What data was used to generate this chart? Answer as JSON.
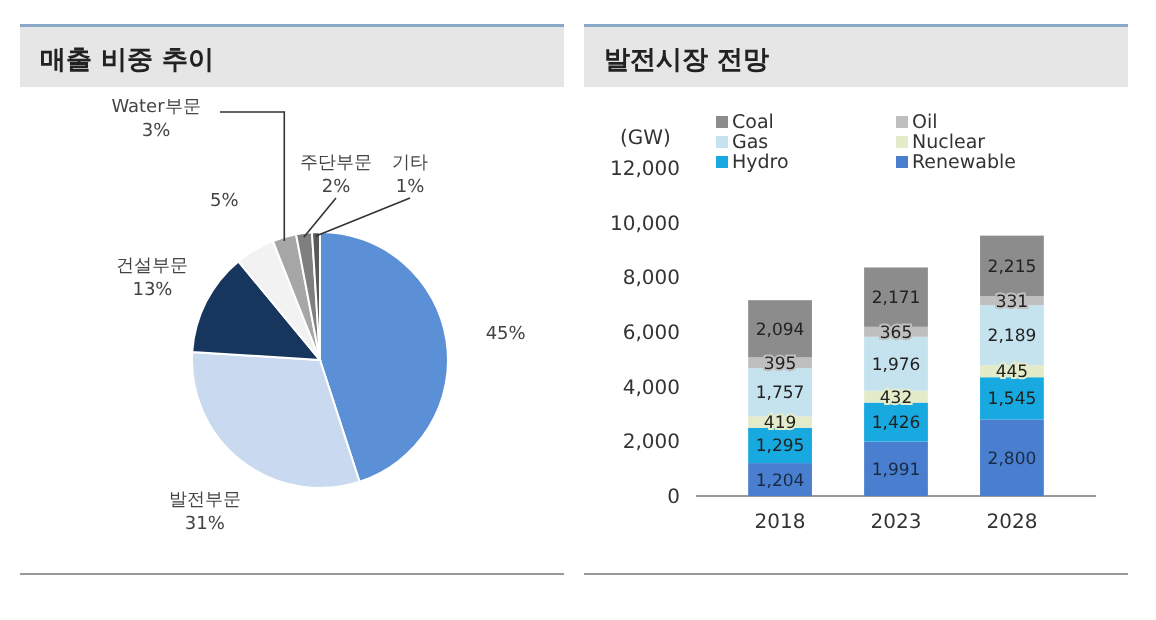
{
  "chart_data": [
    {
      "type": "pie",
      "title": "매출 비중 추이",
      "categories": [
        null,
        "발전부문",
        "건설부문",
        null,
        "Water부문",
        "주단부문",
        "기타"
      ],
      "values": [
        45,
        31,
        13,
        5,
        3,
        2,
        1
      ],
      "value_labels": [
        "45%",
        "31%",
        "13%",
        "5%",
        "3%",
        "2%",
        "1%"
      ],
      "colors": [
        "#5b8fd6",
        "#c9daf0",
        "#17365d",
        "#f2f2f2",
        "#a6a6a6",
        "#7f7f7f",
        "#595959"
      ]
    },
    {
      "type": "bar",
      "title": "발전시장 전망",
      "ylabel": "(GW)",
      "stacked": true,
      "legend": "top",
      "categories": [
        "2018",
        "2023",
        "2028"
      ],
      "ylim": [
        0,
        12000
      ],
      "yticks": [
        {
          "value": 0,
          "label": "0"
        },
        {
          "value": 2000,
          "label": "2,000"
        },
        {
          "value": 4000,
          "label": "4,000"
        },
        {
          "value": 6000,
          "label": "6,000"
        },
        {
          "value": 8000,
          "label": "8,000"
        },
        {
          "value": 10000,
          "label": "10,000"
        },
        {
          "value": 12000,
          "label": "12,000"
        }
      ],
      "series": [
        {
          "name": "Renewable",
          "color": "#4a7fcf",
          "values": [
            1204,
            1991,
            2800
          ],
          "value_labels": [
            "1,204",
            "1,991",
            "2,800"
          ]
        },
        {
          "name": "Hydro",
          "color": "#17a9e0",
          "values": [
            1295,
            1426,
            1545
          ],
          "value_labels": [
            "1,295",
            "1,426",
            "1,545"
          ]
        },
        {
          "name": "Nuclear",
          "color": "#e3ecc9",
          "values": [
            419,
            432,
            445
          ],
          "value_labels": [
            "419",
            "432",
            "445"
          ]
        },
        {
          "name": "Gas",
          "color": "#c5e3ef",
          "values": [
            1757,
            1976,
            2189
          ],
          "value_labels": [
            "1,757",
            "1,976",
            "2,189"
          ]
        },
        {
          "name": "Oil",
          "color": "#bfbfbf",
          "values": [
            395,
            365,
            331
          ],
          "value_labels": [
            "395",
            "365",
            "331"
          ]
        },
        {
          "name": "Coal",
          "color": "#8c8c8c",
          "values": [
            2094,
            2171,
            2215
          ],
          "value_labels": [
            "2,094",
            "2,171",
            "2,215"
          ]
        }
      ]
    }
  ]
}
